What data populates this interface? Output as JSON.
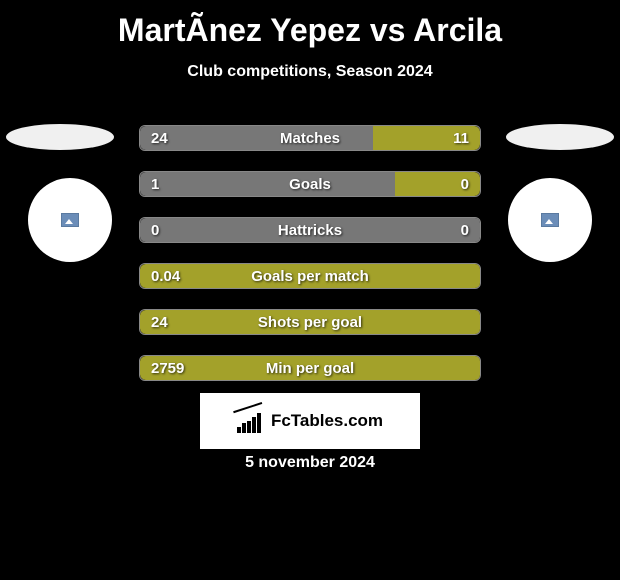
{
  "title": "MartÃ­nez Yepez vs Arcila",
  "subtitle": "Club competitions, Season 2024",
  "date": "5 november 2024",
  "brand": "FcTables.com",
  "colors": {
    "bar_primary": "#a3a12a",
    "bar_secondary": "#777777",
    "background": "#000000",
    "text": "#ffffff"
  },
  "stats": [
    {
      "label": "Matches",
      "left_value": "24",
      "right_value": "11",
      "left_pct": 68.6,
      "right_pct": 31.4,
      "left_color": "#777777",
      "right_color": "#a3a12a"
    },
    {
      "label": "Goals",
      "left_value": "1",
      "right_value": "0",
      "left_pct": 75,
      "right_pct": 25,
      "left_color": "#777777",
      "right_color": "#a3a12a"
    },
    {
      "label": "Hattricks",
      "left_value": "0",
      "right_value": "0",
      "left_pct": 100,
      "right_pct": 0,
      "left_color": "#777777",
      "right_color": "#a3a12a"
    },
    {
      "label": "Goals per match",
      "left_value": "0.04",
      "right_value": "",
      "left_pct": 100,
      "right_pct": 0,
      "left_color": "#a3a12a",
      "right_color": "#777777"
    },
    {
      "label": "Shots per goal",
      "left_value": "24",
      "right_value": "",
      "left_pct": 100,
      "right_pct": 0,
      "left_color": "#a3a12a",
      "right_color": "#777777"
    },
    {
      "label": "Min per goal",
      "left_value": "2759",
      "right_value": "",
      "left_pct": 100,
      "right_pct": 0,
      "left_color": "#a3a12a",
      "right_color": "#777777"
    }
  ]
}
